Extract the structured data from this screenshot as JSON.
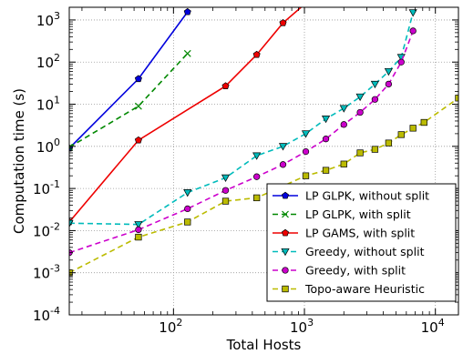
{
  "chart_data": {
    "type": "line",
    "title": "",
    "xlabel": "Total Hosts",
    "ylabel": "Computation time (s)",
    "xscale": "log",
    "yscale": "log",
    "xlim": [
      16,
      15000
    ],
    "ylim": [
      0.0001,
      2000
    ],
    "grid": true,
    "legend_position": "lower-right",
    "x_ticks": [
      {
        "value": 100,
        "base": "10",
        "exp": "2"
      },
      {
        "value": 1000,
        "base": "10",
        "exp": "3"
      },
      {
        "value": 10000,
        "base": "10",
        "exp": "4"
      }
    ],
    "y_ticks": [
      {
        "value": 0.0001,
        "base": "10",
        "exp": "-4"
      },
      {
        "value": 0.001,
        "base": "10",
        "exp": "-3"
      },
      {
        "value": 0.01,
        "base": "10",
        "exp": "-2"
      },
      {
        "value": 0.1,
        "base": "10",
        "exp": "-1"
      },
      {
        "value": 1,
        "base": "10",
        "exp": "0"
      },
      {
        "value": 10,
        "base": "10",
        "exp": "1"
      },
      {
        "value": 100,
        "base": "10",
        "exp": "2"
      },
      {
        "value": 1000,
        "base": "10",
        "exp": "3"
      }
    ],
    "series": [
      {
        "name": "LP GLPK, without split",
        "color": "#0000dd",
        "dash": "solid",
        "marker": "pentagon",
        "points": [
          [
            16,
            0.9
          ],
          [
            54,
            40
          ],
          [
            128,
            1550
          ]
        ]
      },
      {
        "name": "LP GLPK, with split",
        "color": "#008800",
        "dash": "dashed",
        "marker": "x",
        "points": [
          [
            16,
            0.95
          ],
          [
            54,
            9
          ],
          [
            128,
            160
          ]
        ]
      },
      {
        "name": "LP GAMS, with split",
        "color": "#ee0000",
        "dash": "solid",
        "marker": "pentagon",
        "points": [
          [
            16,
            0.016
          ],
          [
            54,
            1.4
          ],
          [
            250,
            27
          ],
          [
            432,
            150
          ],
          [
            686,
            850
          ],
          [
            1024,
            2500
          ]
        ]
      },
      {
        "name": "Greedy, without split",
        "color": "#00bbbb",
        "dash": "dashed",
        "marker": "triangle-down",
        "points": [
          [
            16,
            0.015
          ],
          [
            54,
            0.014
          ],
          [
            128,
            0.08
          ],
          [
            250,
            0.18
          ],
          [
            432,
            0.6
          ],
          [
            686,
            1.0
          ],
          [
            1024,
            2.0
          ],
          [
            1458,
            4.5
          ],
          [
            2000,
            8.0
          ],
          [
            2662,
            15
          ],
          [
            3456,
            30
          ],
          [
            4394,
            60
          ],
          [
            5488,
            130
          ],
          [
            6750,
            1500
          ]
        ]
      },
      {
        "name": "Greedy, with split",
        "color": "#cc00cc",
        "dash": "dashed",
        "marker": "circle",
        "points": [
          [
            16,
            0.003
          ],
          [
            54,
            0.0105
          ],
          [
            128,
            0.033
          ],
          [
            250,
            0.09
          ],
          [
            432,
            0.19
          ],
          [
            686,
            0.37
          ],
          [
            1024,
            0.75
          ],
          [
            1458,
            1.5
          ],
          [
            2000,
            3.3
          ],
          [
            2662,
            6.4
          ],
          [
            3456,
            13
          ],
          [
            4394,
            30
          ],
          [
            5488,
            100
          ],
          [
            6750,
            550
          ]
        ]
      },
      {
        "name": "Topo-aware Heuristic",
        "color": "#bbbb00",
        "dash": "dashed",
        "marker": "square",
        "points": [
          [
            16,
            0.001
          ],
          [
            54,
            0.007
          ],
          [
            128,
            0.016
          ],
          [
            250,
            0.05
          ],
          [
            432,
            0.06
          ],
          [
            1024,
            0.2
          ],
          [
            1458,
            0.27
          ],
          [
            2000,
            0.38
          ],
          [
            2662,
            0.7
          ],
          [
            3456,
            0.85
          ],
          [
            4394,
            1.2
          ],
          [
            5488,
            1.9
          ],
          [
            6750,
            2.7
          ],
          [
            8192,
            3.7
          ],
          [
            15000,
            14
          ]
        ]
      }
    ]
  }
}
